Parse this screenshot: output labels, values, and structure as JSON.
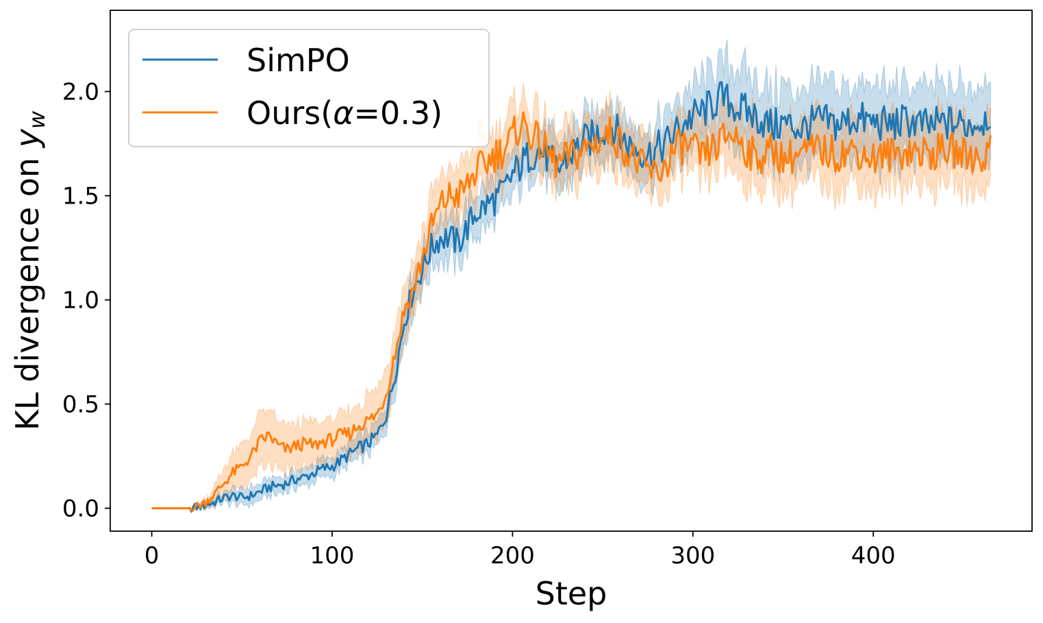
{
  "chart_data": {
    "type": "line",
    "title": "",
    "xlabel": "Step",
    "ylabel": "KL divergence on ",
    "ylabel_math": "y",
    "ylabel_sub": "w",
    "xlim": [
      -23,
      488
    ],
    "ylim": [
      -0.11,
      2.39
    ],
    "xticks": [
      0,
      100,
      200,
      300,
      400
    ],
    "xtick_labels": [
      "0",
      "100",
      "200",
      "300",
      "400"
    ],
    "yticks": [
      0.0,
      0.5,
      1.0,
      1.5,
      2.0
    ],
    "ytick_labels": [
      "0.0",
      "0.5",
      "1.0",
      "1.5",
      "2.0"
    ],
    "grid": false,
    "legend_position": "top-left",
    "series": [
      {
        "name": "SimPO",
        "legend_label": "SimPO",
        "color": "#1f77b4",
        "x": [
          0,
          10,
          20,
          25,
          30,
          35,
          40,
          45,
          50,
          55,
          60,
          65,
          70,
          75,
          80,
          85,
          90,
          95,
          100,
          105,
          110,
          115,
          120,
          125,
          130,
          135,
          140,
          145,
          150,
          155,
          160,
          165,
          170,
          175,
          180,
          185,
          190,
          195,
          200,
          205,
          210,
          215,
          220,
          225,
          230,
          235,
          240,
          245,
          250,
          255,
          260,
          265,
          270,
          275,
          280,
          285,
          290,
          295,
          300,
          305,
          310,
          315,
          320,
          325,
          330,
          335,
          340,
          345,
          350,
          360,
          370,
          380,
          390,
          400,
          410,
          420,
          430,
          440,
          450,
          460,
          465
        ],
        "y": [
          0.0,
          0.0,
          0.0,
          0.005,
          0.015,
          0.03,
          0.05,
          0.06,
          0.05,
          0.06,
          0.08,
          0.1,
          0.11,
          0.12,
          0.14,
          0.15,
          0.17,
          0.19,
          0.2,
          0.23,
          0.26,
          0.29,
          0.31,
          0.35,
          0.45,
          0.65,
          0.9,
          1.05,
          1.15,
          1.25,
          1.3,
          1.3,
          1.27,
          1.35,
          1.42,
          1.45,
          1.48,
          1.52,
          1.6,
          1.65,
          1.7,
          1.72,
          1.68,
          1.62,
          1.68,
          1.72,
          1.76,
          1.78,
          1.82,
          1.84,
          1.78,
          1.74,
          1.72,
          1.7,
          1.72,
          1.75,
          1.8,
          1.85,
          1.88,
          1.9,
          1.93,
          1.97,
          1.95,
          1.92,
          1.9,
          1.88,
          1.85,
          1.83,
          1.85,
          1.82,
          1.86,
          1.84,
          1.87,
          1.85,
          1.84,
          1.86,
          1.83,
          1.85,
          1.84,
          1.86,
          1.9
        ],
        "band_halfwidth": [
          0.0,
          0.0,
          0.0,
          0.003,
          0.01,
          0.015,
          0.02,
          0.025,
          0.03,
          0.03,
          0.03,
          0.03,
          0.03,
          0.03,
          0.03,
          0.03,
          0.03,
          0.035,
          0.035,
          0.035,
          0.04,
          0.04,
          0.04,
          0.045,
          0.05,
          0.06,
          0.07,
          0.07,
          0.07,
          0.07,
          0.08,
          0.08,
          0.08,
          0.08,
          0.08,
          0.08,
          0.08,
          0.08,
          0.08,
          0.08,
          0.08,
          0.08,
          0.09,
          0.09,
          0.09,
          0.09,
          0.09,
          0.09,
          0.09,
          0.09,
          0.09,
          0.09,
          0.09,
          0.09,
          0.09,
          0.1,
          0.11,
          0.11,
          0.12,
          0.12,
          0.13,
          0.14,
          0.14,
          0.14,
          0.14,
          0.14,
          0.14,
          0.14,
          0.14,
          0.14,
          0.14,
          0.14,
          0.14,
          0.14,
          0.14,
          0.14,
          0.14,
          0.14,
          0.14,
          0.14,
          0.14
        ]
      },
      {
        "name": "Ours(α=0.3)",
        "legend_prefix": "Ours(",
        "legend_math": "α",
        "legend_suffix": "=0.3)",
        "color": "#ff7f0e",
        "x": [
          0,
          10,
          20,
          25,
          30,
          35,
          40,
          45,
          50,
          55,
          60,
          65,
          70,
          75,
          80,
          85,
          90,
          95,
          100,
          105,
          110,
          115,
          120,
          125,
          130,
          135,
          140,
          145,
          150,
          155,
          160,
          165,
          170,
          175,
          180,
          185,
          190,
          195,
          200,
          205,
          210,
          215,
          220,
          225,
          230,
          235,
          240,
          245,
          250,
          255,
          260,
          265,
          270,
          275,
          280,
          285,
          290,
          295,
          300,
          305,
          310,
          315,
          320,
          325,
          330,
          335,
          340,
          345,
          350,
          360,
          370,
          380,
          390,
          400,
          410,
          420,
          430,
          440,
          450,
          460,
          465
        ],
        "y": [
          0.0,
          0.0,
          0.0,
          0.01,
          0.03,
          0.07,
          0.12,
          0.17,
          0.2,
          0.25,
          0.32,
          0.35,
          0.3,
          0.28,
          0.3,
          0.31,
          0.3,
          0.32,
          0.33,
          0.35,
          0.36,
          0.4,
          0.42,
          0.45,
          0.55,
          0.75,
          0.95,
          1.05,
          1.2,
          1.35,
          1.45,
          1.5,
          1.5,
          1.55,
          1.62,
          1.65,
          1.7,
          1.72,
          1.78,
          1.85,
          1.8,
          1.75,
          1.7,
          1.65,
          1.68,
          1.7,
          1.72,
          1.75,
          1.78,
          1.8,
          1.75,
          1.7,
          1.65,
          1.62,
          1.6,
          1.65,
          1.72,
          1.74,
          1.72,
          1.68,
          1.72,
          1.75,
          1.8,
          1.78,
          1.72,
          1.68,
          1.7,
          1.72,
          1.68,
          1.7,
          1.72,
          1.7,
          1.72,
          1.68,
          1.7,
          1.72,
          1.7,
          1.72,
          1.7,
          1.68,
          1.72
        ],
        "band_halfwidth": [
          0.0,
          0.0,
          0.0,
          0.005,
          0.015,
          0.03,
          0.05,
          0.07,
          0.08,
          0.09,
          0.1,
          0.1,
          0.09,
          0.08,
          0.08,
          0.08,
          0.08,
          0.08,
          0.08,
          0.08,
          0.08,
          0.08,
          0.09,
          0.09,
          0.1,
          0.1,
          0.1,
          0.1,
          0.1,
          0.1,
          0.1,
          0.1,
          0.1,
          0.1,
          0.1,
          0.1,
          0.1,
          0.1,
          0.1,
          0.1,
          0.1,
          0.1,
          0.1,
          0.1,
          0.1,
          0.1,
          0.1,
          0.1,
          0.1,
          0.1,
          0.1,
          0.1,
          0.1,
          0.1,
          0.1,
          0.1,
          0.1,
          0.1,
          0.1,
          0.1,
          0.1,
          0.1,
          0.12,
          0.12,
          0.12,
          0.12,
          0.12,
          0.12,
          0.12,
          0.12,
          0.12,
          0.12,
          0.12,
          0.12,
          0.12,
          0.12,
          0.12,
          0.12,
          0.12,
          0.12,
          0.12
        ]
      }
    ]
  }
}
